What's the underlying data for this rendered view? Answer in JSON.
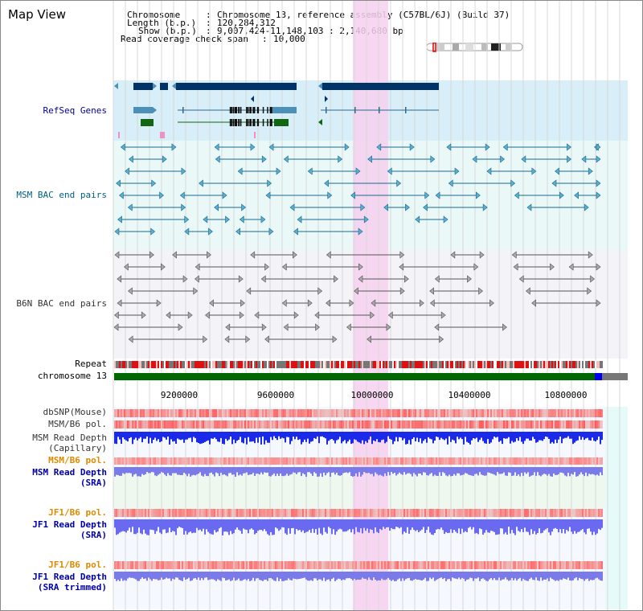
{
  "title": "Map View",
  "header": {
    "chromosome_label": "Chromosome",
    "chromosome_value": "Chromosome 13, reference assembly (C57BL/6J) (Build 37)",
    "length_label": "Length (b.p.)",
    "length_value": "120,284,312",
    "show_label": "Show (b.p.)",
    "show_value": "9,007,424-11,148,103 : 2,140,680 bp",
    "coverage_label": "Read coverage check span",
    "coverage_value": "10,000"
  },
  "tracks": {
    "refseq": "RefSeq Genes",
    "msm_bac": "MSM BAC end pairs",
    "b6n_bac": "B6N BAC end pairs",
    "repeat": "Repeat",
    "chromosome": "chromosome 13",
    "dbsnp": "dbSNP(Mouse)",
    "msm_b6_pol": "MSM/B6 pol.",
    "msm_read_depth_cap_1": "MSM Read Depth",
    "msm_read_depth_cap_2": "(Capillary)",
    "msm_b6_pol_2": "MSM/B6 pol.",
    "msm_read_depth_sra_1": "MSM Read Depth",
    "msm_read_depth_sra_2": "(SRA)",
    "jf1_b6_pol": "JF1/B6 pol.",
    "jf1_read_depth_sra_1": "JF1 Read Depth",
    "jf1_read_depth_sra_2": "(SRA)",
    "jf1_b6_pol_2": "JF1/B6 pol.",
    "jf1_read_depth_trim_1": "JF1 Read Depth",
    "jf1_read_depth_trim_2": "(SRA trimmed)"
  },
  "axis": {
    "ticks": [
      "9200000",
      "9600000",
      "10000000",
      "10400000",
      "10800000"
    ]
  },
  "colors": {
    "refseq_label": "#000099",
    "msm_label": "#006080",
    "b6n_label": "#333333",
    "orange_label": "#e08a00",
    "blue_label": "#0000aa",
    "highlight": "#f7d0f0",
    "gene_dark": "#003366",
    "gene_mid": "#4a90b8",
    "gene_green": "#116611",
    "chrom_green": "#006600"
  }
}
